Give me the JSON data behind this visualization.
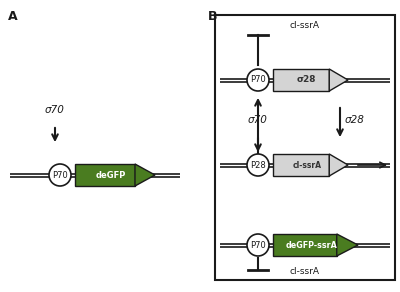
{
  "background_color": "#ffffff",
  "label_A": "A",
  "label_B": "B",
  "panel_A": {
    "sigma70_label": "σ70",
    "promoter_A_label": "P70",
    "gene_label": "deGFP"
  },
  "panel_B": {
    "sigma70_label": "σ70",
    "sigma28_label": "σ28",
    "promoter_B1_label": "P70",
    "gene_B1_label": "σ28",
    "promoter_B2_label": "P28",
    "gene_B2_label": "cl-ssrA",
    "promoter_B3_label": "P70",
    "gene_B3_label": "deGFP-ssrA",
    "clssrA_top_label": "cl-ssrA",
    "clssrA_bottom_label": "cl-ssrA"
  },
  "green_color": "#4a7c20",
  "gray_color": "#c8c8c8",
  "light_gray": "#d4d4d4",
  "line_color": "#1a1a1a",
  "text_color": "#1a1a1a",
  "box_color": "#1a1a1a"
}
